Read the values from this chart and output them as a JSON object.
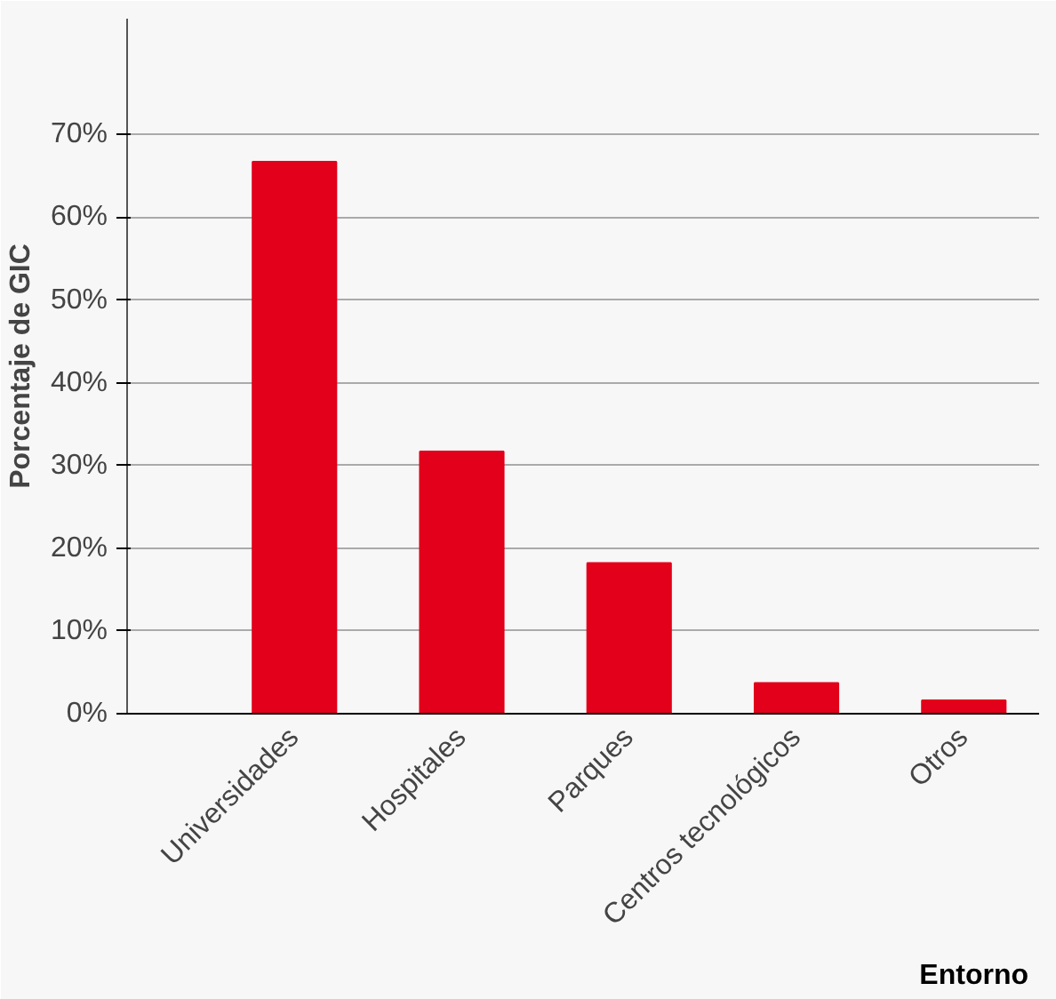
{
  "chart_data": {
    "type": "bar",
    "xlabel": "Entorno",
    "ylabel": "Porcentaje de GIC",
    "categories": [
      "Universidades",
      "Hospitales",
      "Parques",
      "Centros tecnológicos",
      "Otros"
    ],
    "values": [
      66.7,
      31.7,
      18.2,
      3.7,
      1.6
    ],
    "color": "#e2001a",
    "ylim": [
      0,
      84
    ],
    "yticks": [
      {
        "value": 0,
        "label": "0%"
      },
      {
        "value": 10,
        "label": "10%"
      },
      {
        "value": 20,
        "label": "20%"
      },
      {
        "value": 30,
        "label": "30%"
      },
      {
        "value": 40,
        "label": "40%"
      },
      {
        "value": 50,
        "label": "50%"
      },
      {
        "value": 60,
        "label": "60%"
      },
      {
        "value": 70,
        "label": "70%"
      }
    ],
    "grid": "y"
  }
}
